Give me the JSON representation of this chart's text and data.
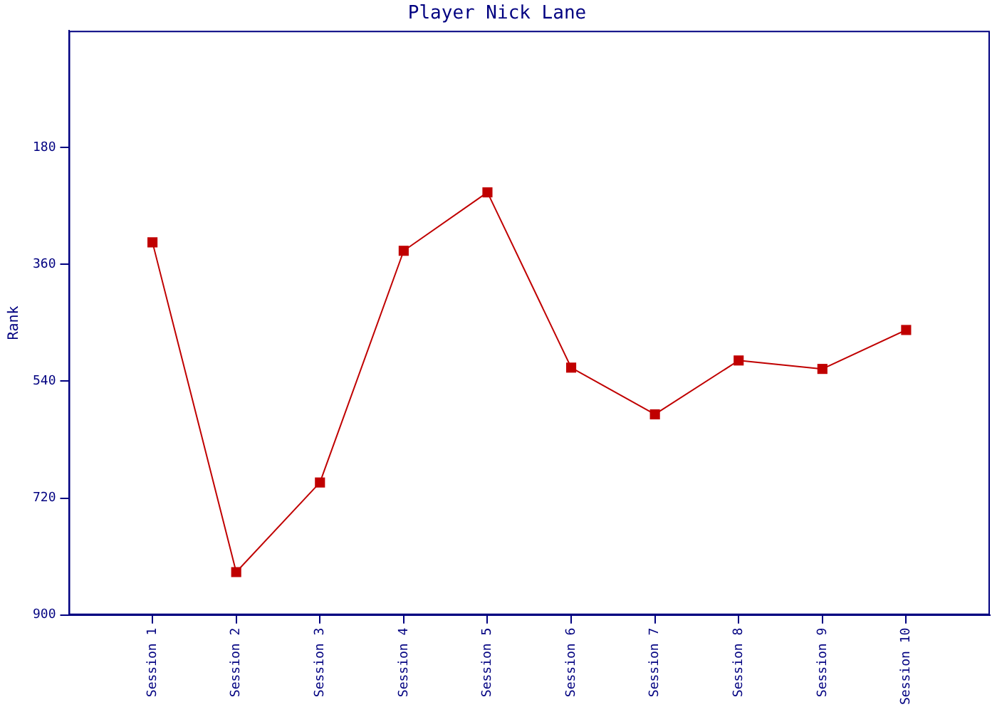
{
  "chart_data": {
    "type": "line",
    "title": "Player Nick Lane",
    "ylabel": "Rank",
    "categories": [
      "Session 1",
      "Session 2",
      "Session 3",
      "Session 4",
      "Session 5",
      "Session 6",
      "Session 7",
      "Session 8",
      "Session 9",
      "Session 10"
    ],
    "series": [
      {
        "color": "#c00000",
        "values": [
          326,
          834,
          696,
          339,
          249,
          519,
          591,
          508,
          521,
          461
        ]
      }
    ],
    "ylim": [
      900,
      0
    ],
    "yticks": [
      180,
      360,
      540,
      720,
      900
    ],
    "grid": false,
    "legend": false,
    "marker": "square",
    "line_style": "solid"
  }
}
